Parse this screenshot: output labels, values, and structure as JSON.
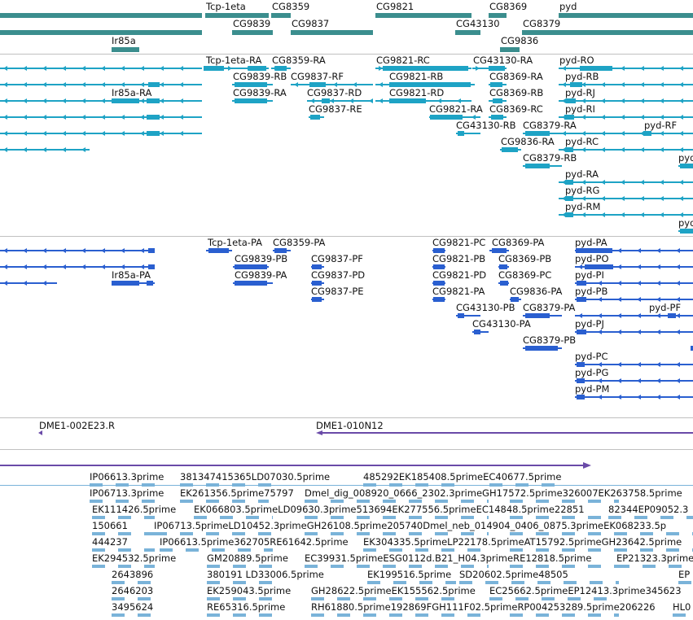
{
  "colors": {
    "gene": "#3b8e8e",
    "transcript": "#1ea3c5",
    "protein": "#2a5fd0",
    "clone": "#6a4aa8",
    "est": "#7ab3d9",
    "est_line": "#7ab3d9",
    "separator": "#c0c0c0"
  },
  "tracks": {
    "genes": {
      "labels": [
        {
          "id": "g1",
          "text": "Tcp-1eta"
        },
        {
          "id": "g2",
          "text": "CG8359"
        },
        {
          "id": "g3",
          "text": "CG9821"
        },
        {
          "id": "g4",
          "text": "CG8369"
        },
        {
          "id": "g5",
          "text": "pyd"
        },
        {
          "id": "g6",
          "text": "CG9839"
        },
        {
          "id": "g7",
          "text": "CG9837"
        },
        {
          "id": "g8",
          "text": "CG43130"
        },
        {
          "id": "g9",
          "text": "CG8379"
        },
        {
          "id": "g10",
          "text": "Ir85a"
        },
        {
          "id": "g11",
          "text": "CG9836"
        }
      ]
    },
    "transcripts": {
      "labels": [
        {
          "id": "t1",
          "text": "Tcp-1eta-RA"
        },
        {
          "id": "t2",
          "text": "CG8359-RA"
        },
        {
          "id": "t3",
          "text": "CG9821-RC"
        },
        {
          "id": "t4",
          "text": "CG43130-RA"
        },
        {
          "id": "t5",
          "text": "pyd-RO"
        },
        {
          "id": "t6",
          "text": "CG9839-RB"
        },
        {
          "id": "t7",
          "text": "CG9837-RF"
        },
        {
          "id": "t8",
          "text": "CG9821-RB"
        },
        {
          "id": "t9",
          "text": "CG8369-RA"
        },
        {
          "id": "t10",
          "text": "pyd-RB"
        },
        {
          "id": "t11",
          "text": "Ir85a-RA"
        },
        {
          "id": "t12",
          "text": "CG9839-RA"
        },
        {
          "id": "t13",
          "text": "CG9837-RD"
        },
        {
          "id": "t14",
          "text": "CG9821-RD"
        },
        {
          "id": "t15",
          "text": "CG8369-RB"
        },
        {
          "id": "t16",
          "text": "pyd-RJ"
        },
        {
          "id": "t17",
          "text": "CG9837-RE"
        },
        {
          "id": "t18",
          "text": "CG9821-RA"
        },
        {
          "id": "t19",
          "text": "CG8369-RC"
        },
        {
          "id": "t20",
          "text": "pyd-RI"
        },
        {
          "id": "t21",
          "text": "CG43130-RB"
        },
        {
          "id": "t22",
          "text": "CG8379-RA"
        },
        {
          "id": "t23",
          "text": "pyd-RF"
        },
        {
          "id": "t24",
          "text": "CG9836-RA"
        },
        {
          "id": "t25",
          "text": "pyd-RC"
        },
        {
          "id": "t26",
          "text": "CG8379-RB"
        },
        {
          "id": "t27",
          "text": "pyd"
        },
        {
          "id": "t28",
          "text": "pyd-RA"
        },
        {
          "id": "t29",
          "text": "pyd-RG"
        },
        {
          "id": "t30",
          "text": "pyd-RM"
        },
        {
          "id": "t31",
          "text": "pyd"
        }
      ]
    },
    "proteins": {
      "labels": [
        {
          "id": "p1",
          "text": "Tcp-1eta-PA"
        },
        {
          "id": "p2",
          "text": "CG8359-PA"
        },
        {
          "id": "p3",
          "text": "CG9821-PC"
        },
        {
          "id": "p4",
          "text": "CG8369-PA"
        },
        {
          "id": "p5",
          "text": "pyd-PA"
        },
        {
          "id": "p6",
          "text": "CG9839-PB"
        },
        {
          "id": "p7",
          "text": "CG9837-PF"
        },
        {
          "id": "p8",
          "text": "CG9821-PB"
        },
        {
          "id": "p9",
          "text": "CG8369-PB"
        },
        {
          "id": "p10",
          "text": "pyd-PO"
        },
        {
          "id": "p11",
          "text": "Ir85a-PA"
        },
        {
          "id": "p12",
          "text": "CG9839-PA"
        },
        {
          "id": "p13",
          "text": "CG9837-PD"
        },
        {
          "id": "p14",
          "text": "CG9821-PD"
        },
        {
          "id": "p15",
          "text": "CG8369-PC"
        },
        {
          "id": "p16",
          "text": "pyd-PI"
        },
        {
          "id": "p17",
          "text": "CG9837-PE"
        },
        {
          "id": "p18",
          "text": "CG9821-PA"
        },
        {
          "id": "p19",
          "text": "CG9836-PA"
        },
        {
          "id": "p20",
          "text": "pyd-PB"
        },
        {
          "id": "p21",
          "text": "CG43130-PB"
        },
        {
          "id": "p22",
          "text": "CG8379-PA"
        },
        {
          "id": "p23",
          "text": "pyd-PF"
        },
        {
          "id": "p24",
          "text": "CG43130-PA"
        },
        {
          "id": "p25",
          "text": "pyd-PJ"
        },
        {
          "id": "p26",
          "text": "CG8379-PB"
        },
        {
          "id": "p27",
          "text": "pyd-PC"
        },
        {
          "id": "p28",
          "text": "pyd-PG"
        },
        {
          "id": "p29",
          "text": "pyd-PM"
        }
      ]
    },
    "clones": {
      "labels": [
        {
          "id": "c1",
          "text": "DME1-002E23.R"
        },
        {
          "id": "c2",
          "text": "DME1-010N12"
        }
      ]
    },
    "ests": {
      "labels": [
        {
          "id": "e1",
          "text": "IP06613.3prime"
        },
        {
          "id": "e2",
          "text": "381347415365LD07030.5prime"
        },
        {
          "id": "e3",
          "text": "485292EK185408.5primeEC40677.5prime"
        },
        {
          "id": "e4",
          "text": "IP06713.3prime"
        },
        {
          "id": "e5",
          "text": "EK261356.5prime75797"
        },
        {
          "id": "e6",
          "text": "Dmel_dig_008920_0666_2302.3primeGH17572.5prime326007EK263758.5prime"
        },
        {
          "id": "e7",
          "text": "EK111426.5prime"
        },
        {
          "id": "e8",
          "text": "EK066803.5primeLD09630.3prime513694EK277556.5primeEC14848.5prime22851"
        },
        {
          "id": "e9",
          "text": "82344EP09052.3"
        },
        {
          "id": "e10",
          "text": "150661"
        },
        {
          "id": "e11",
          "text": "IP06713.5primeLD10452.3primeGH26108.5prime205740Dmel_neb_014904_0406_0875.3primeEK068233.5p"
        },
        {
          "id": "e12",
          "text": "444237"
        },
        {
          "id": "e13",
          "text": "IP06613.5prime362705RE61642.5prime"
        },
        {
          "id": "e14",
          "text": "EK304335.5primeLP22178.5primeAT15792.5primeGH23642.5prime"
        },
        {
          "id": "e15",
          "text": "EK294532.5prime"
        },
        {
          "id": "e16",
          "text": "GM20889.5prime"
        },
        {
          "id": "e17",
          "text": "EC39931.5primeESG0112d.B21_H04.3primeRE12818.5prime"
        },
        {
          "id": "e18",
          "text": "EP21323.3prime"
        },
        {
          "id": "e19",
          "text": "2643896"
        },
        {
          "id": "e20",
          "text": "380191 LD33006.5prime"
        },
        {
          "id": "e21",
          "text": "EK199516.5prime"
        },
        {
          "id": "e22",
          "text": "SD20602.5prime48505"
        },
        {
          "id": "e23",
          "text": "EP"
        },
        {
          "id": "e24",
          "text": "2646203"
        },
        {
          "id": "e25",
          "text": "EK259043.5prime"
        },
        {
          "id": "e26",
          "text": "GH28622.5primeEK155562.5prime"
        },
        {
          "id": "e27",
          "text": "EC25662.5primeEP12413.3prime345623"
        },
        {
          "id": "e28",
          "text": "3495624"
        },
        {
          "id": "e29",
          "text": "RE65316.5prime"
        },
        {
          "id": "e30",
          "text": "RH61880.5prime192869FGH111F02.5primeRP004253289.5prime206226"
        },
        {
          "id": "e31",
          "text": "HL0"
        }
      ]
    }
  }
}
